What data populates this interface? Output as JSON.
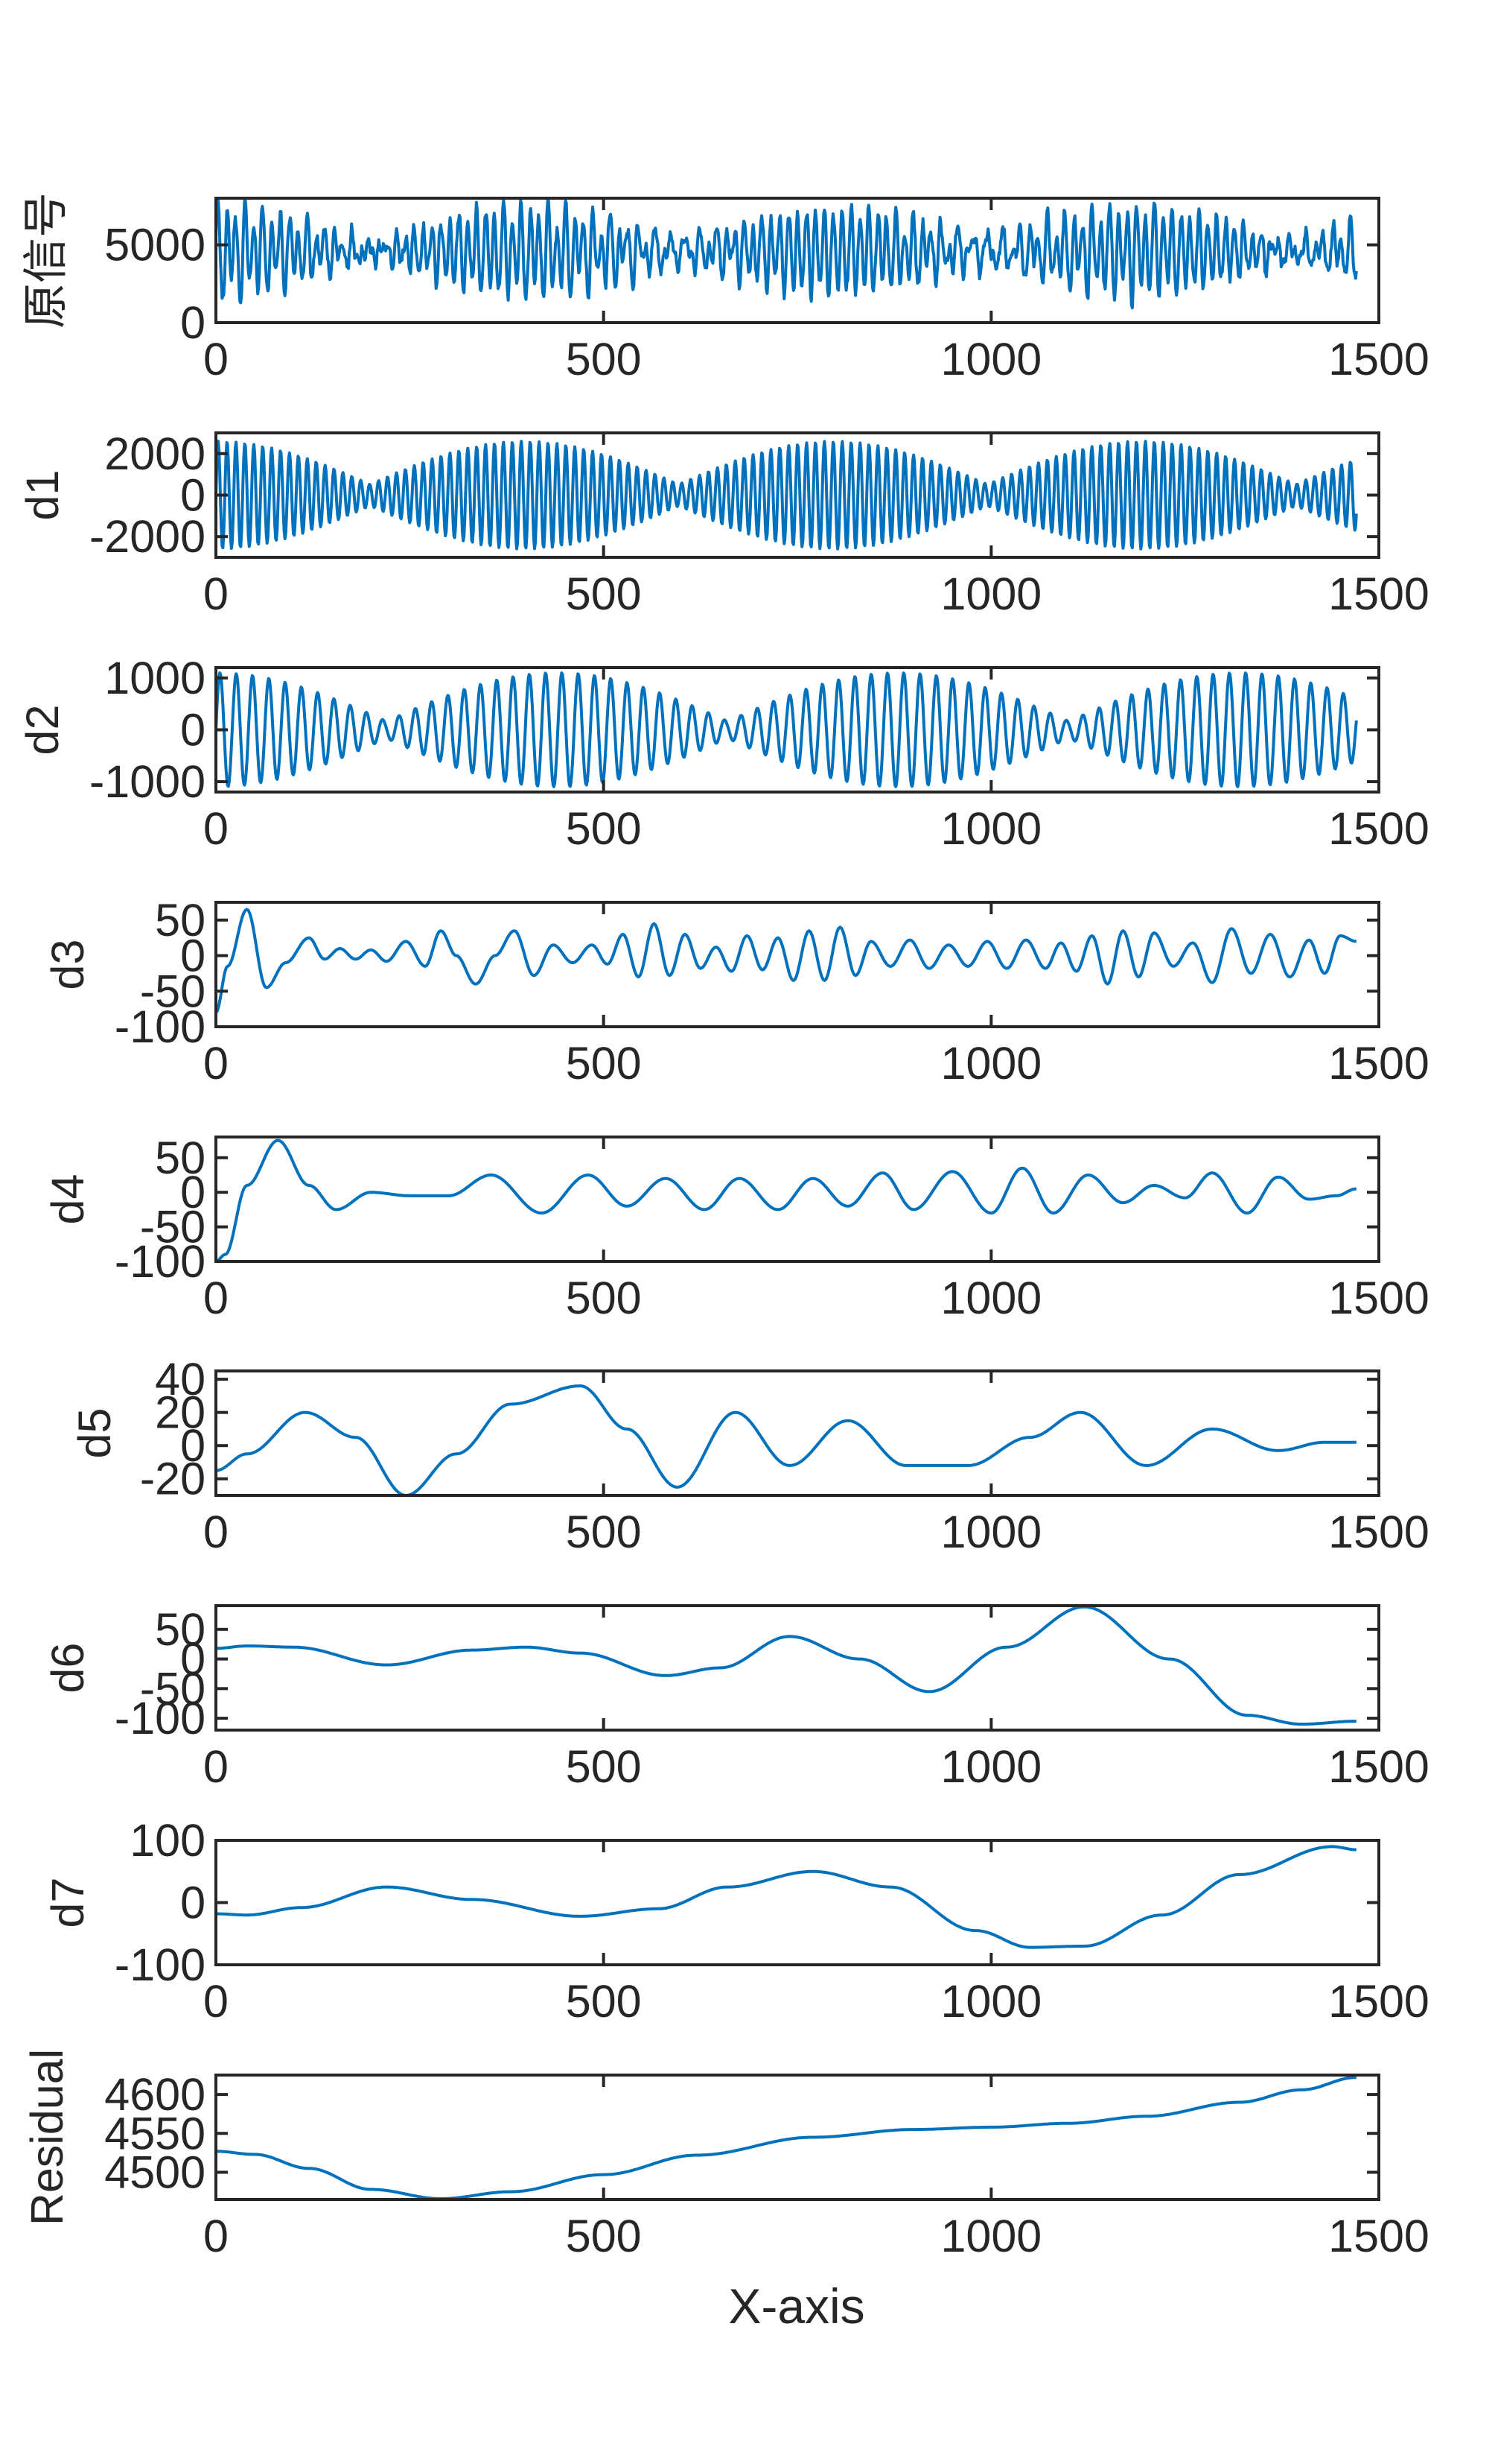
{
  "figure": {
    "xlabel": "X-axis",
    "line_color": "#0072BD",
    "axis_color": "#262626"
  },
  "chart_data": [
    {
      "type": "line",
      "ylabel": "原信号",
      "xlim": [
        0,
        1500
      ],
      "ylim": [
        0,
        8000
      ],
      "xticks": [
        0,
        500,
        1000,
        1500
      ],
      "yticks": [
        0,
        5000
      ],
      "x": [
        0,
        1471
      ],
      "series": [
        {
          "kind": "oscillation",
          "center": 4600,
          "components": [
            {
              "amp": 2600,
              "period": 11.5,
              "env_period": 398,
              "env_min": 0.05
            },
            {
              "amp": 950,
              "period": 19.5,
              "env_period": 520,
              "env_min": 0.2
            }
          ],
          "noise": 700
        }
      ]
    },
    {
      "type": "line",
      "ylabel": "d1",
      "xlim": [
        0,
        1500
      ],
      "ylim": [
        -3000,
        3000
      ],
      "xticks": [
        0,
        500,
        1000,
        1500
      ],
      "yticks": [
        -2000,
        0,
        2000
      ],
      "x": [
        0,
        1471
      ],
      "series": [
        {
          "kind": "oscillation",
          "center": 0,
          "components": [
            {
              "amp": 2600,
              "period": 11.5,
              "env_period": 398,
              "env_min": 0.2
            }
          ],
          "noise": 0
        }
      ]
    },
    {
      "type": "line",
      "ylabel": "d2",
      "xlim": [
        0,
        1500
      ],
      "ylim": [
        -1200,
        1200
      ],
      "xticks": [
        0,
        500,
        1000,
        1500
      ],
      "yticks": [
        -1000,
        0,
        1000
      ],
      "x": [
        0,
        1471
      ],
      "series": [
        {
          "kind": "oscillation",
          "center": 0,
          "components": [
            {
              "amp": 1100,
              "period": 21,
              "env_period": 440,
              "env_min": 0.15
            }
          ],
          "noise": 0
        }
      ]
    },
    {
      "type": "line",
      "ylabel": "d3",
      "xlim": [
        0,
        1500
      ],
      "ylim": [
        -100,
        75
      ],
      "xticks": [
        0,
        500,
        1000,
        1500
      ],
      "yticks": [
        -100,
        -50,
        0,
        50
      ],
      "x": [
        0,
        15,
        40,
        65,
        90,
        120,
        140,
        160,
        180,
        200,
        220,
        245,
        270,
        290,
        310,
        335,
        360,
        385,
        410,
        435,
        460,
        485,
        505,
        525,
        545,
        565,
        585,
        605,
        625,
        645,
        665,
        685,
        705,
        725,
        745,
        765,
        785,
        805,
        825,
        845,
        870,
        895,
        920,
        945,
        970,
        995,
        1020,
        1045,
        1070,
        1090,
        1110,
        1130,
        1150,
        1170,
        1190,
        1210,
        1235,
        1260,
        1285,
        1310,
        1335,
        1360,
        1385,
        1410,
        1430,
        1450,
        1471
      ],
      "series": [
        {
          "kind": "points",
          "values": [
            -80,
            -15,
            65,
            -45,
            -10,
            25,
            -5,
            10,
            -5,
            8,
            -8,
            20,
            -15,
            35,
            0,
            -40,
            0,
            35,
            -28,
            15,
            -10,
            15,
            -12,
            30,
            -30,
            45,
            -28,
            30,
            -18,
            12,
            -22,
            28,
            -20,
            25,
            -35,
            35,
            -35,
            40,
            -28,
            20,
            -15,
            22,
            -18,
            15,
            -15,
            20,
            -18,
            22,
            -18,
            18,
            -22,
            28,
            -40,
            35,
            -30,
            32,
            -15,
            18,
            -38,
            38,
            -25,
            30,
            -30,
            22,
            -25,
            28,
            20
          ]
        }
      ]
    },
    {
      "type": "line",
      "ylabel": "d4",
      "xlim": [
        0,
        1500
      ],
      "ylim": [
        -100,
        80
      ],
      "xticks": [
        0,
        500,
        1000,
        1500
      ],
      "yticks": [
        -100,
        -50,
        0,
        50
      ],
      "x": [
        0,
        12,
        40,
        80,
        120,
        155,
        200,
        250,
        300,
        355,
        420,
        480,
        530,
        580,
        630,
        675,
        725,
        770,
        815,
        860,
        900,
        950,
        1000,
        1040,
        1080,
        1125,
        1170,
        1210,
        1250,
        1285,
        1330,
        1370,
        1410,
        1445,
        1471
      ],
      "series": [
        {
          "kind": "points",
          "values": [
            -100,
            -90,
            10,
            75,
            10,
            -25,
            0,
            -5,
            -5,
            25,
            -30,
            25,
            -20,
            20,
            -25,
            20,
            -25,
            20,
            -20,
            28,
            -25,
            30,
            -30,
            35,
            -30,
            25,
            -15,
            10,
            -8,
            28,
            -30,
            22,
            -10,
            -5,
            5
          ]
        }
      ]
    },
    {
      "type": "line",
      "ylabel": "d5",
      "xlim": [
        0,
        1500
      ],
      "ylim": [
        -30,
        45
      ],
      "xticks": [
        0,
        500,
        1000,
        1500
      ],
      "yticks": [
        -20,
        0,
        20,
        40
      ],
      "x": [
        0,
        40,
        115,
        180,
        245,
        310,
        380,
        470,
        530,
        595,
        670,
        740,
        815,
        890,
        970,
        1050,
        1115,
        1200,
        1285,
        1370,
        1430,
        1471
      ],
      "series": [
        {
          "kind": "points",
          "values": [
            -15,
            -5,
            20,
            5,
            -30,
            -5,
            25,
            36,
            10,
            -25,
            20,
            -12,
            15,
            -12,
            -12,
            5,
            20,
            -12,
            10,
            -3,
            2,
            2
          ]
        }
      ]
    },
    {
      "type": "line",
      "ylabel": "d6",
      "xlim": [
        0,
        1500
      ],
      "ylim": [
        -120,
        90
      ],
      "xticks": [
        0,
        500,
        1000,
        1500
      ],
      "yticks": [
        -100,
        -50,
        0,
        50
      ],
      "x": [
        0,
        40,
        100,
        220,
        330,
        400,
        470,
        580,
        650,
        740,
        830,
        920,
        1020,
        1120,
        1230,
        1330,
        1400,
        1471
      ],
      "series": [
        {
          "kind": "points",
          "values": [
            18,
            22,
            20,
            -10,
            15,
            20,
            10,
            -28,
            -15,
            38,
            0,
            -55,
            20,
            88,
            0,
            -95,
            -110,
            -105
          ]
        }
      ]
    },
    {
      "type": "line",
      "ylabel": "d7",
      "xlim": [
        0,
        1500
      ],
      "ylim": [
        -100,
        100
      ],
      "xticks": [
        0,
        500,
        1000,
        1500
      ],
      "yticks": [
        -100,
        0,
        100
      ],
      "x": [
        0,
        40,
        110,
        220,
        330,
        470,
        570,
        660,
        770,
        870,
        980,
        1050,
        1120,
        1220,
        1320,
        1440,
        1471
      ],
      "series": [
        {
          "kind": "points",
          "values": [
            -18,
            -20,
            -8,
            25,
            5,
            -22,
            -10,
            25,
            50,
            25,
            -45,
            -72,
            -70,
            -20,
            45,
            90,
            85
          ]
        }
      ]
    },
    {
      "type": "line",
      "ylabel": "Residual",
      "xlim": [
        0,
        1500
      ],
      "ylim": [
        4465,
        4625
      ],
      "xticks": [
        0,
        500,
        1000,
        1500
      ],
      "yticks": [
        4500,
        4550,
        4600
      ],
      "x": [
        0,
        50,
        120,
        200,
        290,
        380,
        500,
        620,
        770,
        900,
        1000,
        1100,
        1200,
        1320,
        1400,
        1471
      ],
      "series": [
        {
          "kind": "points",
          "values": [
            4527,
            4523,
            4505,
            4478,
            4466,
            4475,
            4497,
            4522,
            4545,
            4555,
            4558,
            4563,
            4572,
            4590,
            4606,
            4622
          ]
        }
      ]
    }
  ]
}
